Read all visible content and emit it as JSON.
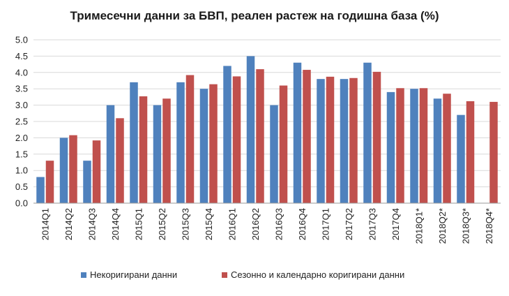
{
  "chart_data": {
    "type": "bar",
    "title": "Тримесечни данни за БВП, реален растеж на годишна база (%)",
    "xlabel": "",
    "ylabel": "",
    "ylim": [
      0,
      5
    ],
    "ytick_step": 0.5,
    "yticks": [
      "0.0",
      "0.5",
      "1.0",
      "1.5",
      "2.0",
      "2.5",
      "3.0",
      "3.5",
      "4.0",
      "4.5",
      "5.0"
    ],
    "grid": true,
    "legend_position": "bottom",
    "categories": [
      "2014Q1",
      "2014Q2",
      "2014Q3",
      "2014Q4",
      "2015Q1",
      "2015Q2",
      "2015Q3",
      "2015Q4",
      "2016Q1",
      "2016Q2",
      "2016Q3",
      "2016Q4",
      "2017Q1",
      "2017Q2",
      "2017Q3",
      "2017Q4",
      "2018Q1*",
      "2018Q2*",
      "2018Q3*",
      "2018Q4*"
    ],
    "series": [
      {
        "name": "Некоригирани данни",
        "color": "#4f81bd",
        "values": [
          0.8,
          2.0,
          1.3,
          3.0,
          3.7,
          3.0,
          3.7,
          3.5,
          4.2,
          4.5,
          3.0,
          4.3,
          3.8,
          3.8,
          4.3,
          3.4,
          3.5,
          3.2,
          2.7,
          null
        ]
      },
      {
        "name": "Сезонно и календарно коригирани данни",
        "color": "#c0504d",
        "values": [
          1.3,
          2.08,
          1.92,
          2.6,
          3.27,
          3.2,
          3.92,
          3.64,
          3.88,
          4.1,
          3.6,
          4.08,
          3.87,
          3.83,
          4.02,
          3.52,
          3.52,
          3.35,
          3.12,
          3.1
        ]
      }
    ]
  }
}
